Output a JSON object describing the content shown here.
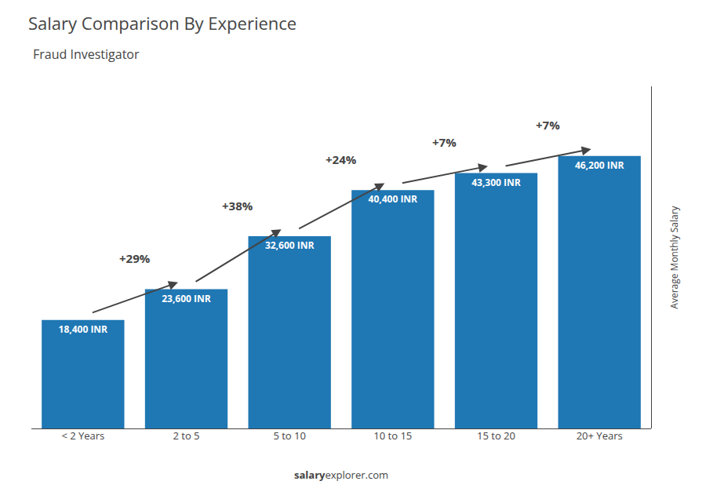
{
  "chart_data": {
    "type": "bar",
    "title": "Salary Comparison By Experience",
    "subtitle": "Fraud Investigator",
    "categories": [
      "< 2 Years",
      "2 to 5",
      "5 to 10",
      "10 to 15",
      "15 to 20",
      "20+ Years"
    ],
    "values": [
      18400,
      23600,
      32600,
      40400,
      43300,
      46200
    ],
    "value_labels": [
      "18,400 INR",
      "23,600 INR",
      "32,600 INR",
      "40,400 INR",
      "43,300 INR",
      "46,200 INR"
    ],
    "data_labels": true,
    "annotations": [
      "+29%",
      "+38%",
      "+24%",
      "+7%",
      "+7%"
    ],
    "ylabel": "Average Monthly Salary",
    "footer": [
      "salary",
      "explorer.com"
    ],
    "ylim": [
      0,
      58000
    ],
    "grid": false,
    "tick_labels": "x"
  }
}
